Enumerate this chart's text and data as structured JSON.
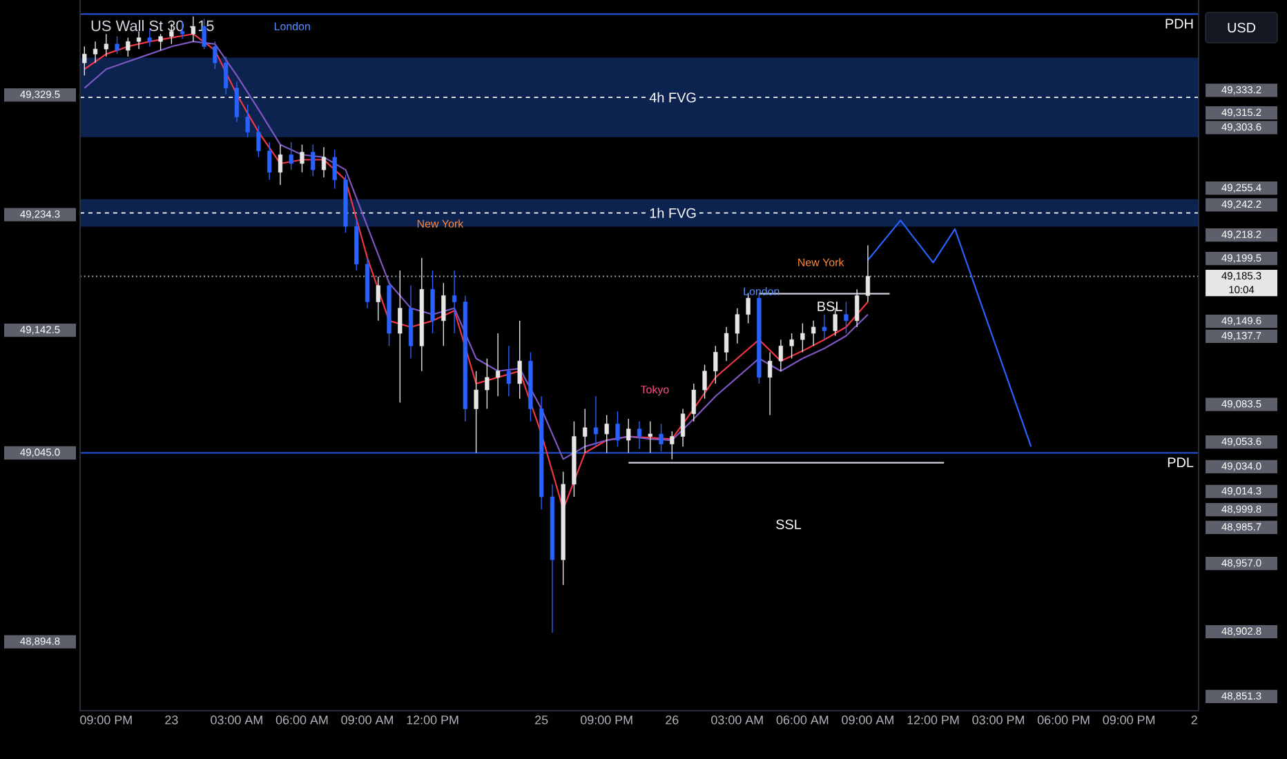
{
  "chart_data": {
    "type": "candlestick",
    "title": "US Wall St 30 · 15",
    "categories": [
      null,
      null,
      "09:00 PM",
      null,
      null,
      null,
      null,
      null,
      "23",
      null,
      null,
      null,
      null,
      null,
      "03:00 AM",
      null,
      null,
      null,
      null,
      null,
      "06:00 AM",
      null,
      null,
      null,
      null,
      null,
      "09:00 AM",
      null,
      null,
      null,
      null,
      null,
      "12:00 PM",
      null,
      null,
      null,
      null,
      null,
      null,
      null,
      null,
      null,
      "25",
      null,
      null,
      null,
      null,
      null,
      "09:00 PM",
      null,
      null,
      null,
      null,
      null,
      "26",
      null,
      null,
      null,
      null,
      null,
      "03:00 AM",
      null,
      null,
      null,
      null,
      null,
      "06:00 AM",
      null,
      null,
      null,
      null,
      null,
      "09:00 AM",
      null,
      null,
      null,
      null,
      null,
      "12:00 PM",
      null,
      null,
      null,
      null,
      null,
      "03:00 PM",
      null,
      null,
      null,
      null,
      null,
      "06:00 PM",
      null,
      null,
      null,
      null,
      null,
      "09:00 PM",
      null,
      null,
      null,
      null,
      null,
      "2"
    ],
    "ohlc": [
      [
        49355,
        49368,
        49345,
        49362
      ],
      [
        49362,
        49372,
        49355,
        49366
      ],
      [
        49366,
        49378,
        49360,
        49370
      ],
      [
        49370,
        49376,
        49362,
        49365
      ],
      [
        49365,
        49375,
        49360,
        49372
      ],
      [
        49372,
        49380,
        49366,
        49375
      ],
      [
        49375,
        49382,
        49368,
        49372
      ],
      [
        49372,
        49378,
        49365,
        49376
      ],
      [
        49376,
        49386,
        49370,
        49380
      ],
      [
        49380,
        49388,
        49374,
        49378
      ],
      [
        49378,
        49392,
        49372,
        49384
      ],
      [
        49384,
        49390,
        49366,
        49368
      ],
      [
        49368,
        49372,
        49350,
        49355
      ],
      [
        49355,
        49360,
        49330,
        49335
      ],
      [
        49335,
        49340,
        49308,
        49312
      ],
      [
        49312,
        49322,
        49296,
        49300
      ],
      [
        49300,
        49305,
        49280,
        49285
      ],
      [
        49285,
        49292,
        49262,
        49268
      ],
      [
        49268,
        49290,
        49258,
        49282
      ],
      [
        49282,
        49292,
        49270,
        49275
      ],
      [
        49275,
        49290,
        49268,
        49284
      ],
      [
        49284,
        49290,
        49265,
        49270
      ],
      [
        49270,
        49288,
        49264,
        49280
      ],
      [
        49280,
        49286,
        49255,
        49262
      ],
      [
        49262,
        49266,
        49220,
        49225
      ],
      [
        49225,
        49230,
        49190,
        49195
      ],
      [
        49195,
        49200,
        49160,
        49165
      ],
      [
        49165,
        49185,
        49150,
        49178
      ],
      [
        49178,
        49182,
        49130,
        49140
      ],
      [
        49140,
        49190,
        49085,
        49160
      ],
      [
        49160,
        49178,
        49120,
        49130
      ],
      [
        49130,
        49200,
        49110,
        49175
      ],
      [
        49175,
        49190,
        49140,
        49150
      ],
      [
        49150,
        49180,
        49130,
        49170
      ],
      [
        49170,
        49190,
        49140,
        49165
      ],
      [
        49165,
        49170,
        49070,
        49080
      ],
      [
        49080,
        49110,
        49045,
        49095
      ],
      [
        49095,
        49120,
        49080,
        49105
      ],
      [
        49105,
        49140,
        49090,
        49110
      ],
      [
        49110,
        49130,
        49090,
        49100
      ],
      [
        49100,
        49150,
        49088,
        49118
      ],
      [
        49118,
        49125,
        49070,
        49080
      ],
      [
        49080,
        49090,
        49000,
        49010
      ],
      [
        49010,
        49020,
        48902,
        48960
      ],
      [
        48960,
        49030,
        48940,
        49020
      ],
      [
        49020,
        49070,
        49010,
        49058
      ],
      [
        49058,
        49080,
        49045,
        49065
      ],
      [
        49065,
        49090,
        49050,
        49060
      ],
      [
        49060,
        49075,
        49045,
        49068
      ],
      [
        49068,
        49078,
        49050,
        49055
      ],
      [
        49055,
        49072,
        49045,
        49064
      ],
      [
        49064,
        49070,
        49048,
        49058
      ],
      [
        49058,
        49070,
        49045,
        49060
      ],
      [
        49060,
        49068,
        49046,
        49052
      ],
      [
        49052,
        49062,
        49040,
        49058
      ],
      [
        49058,
        49080,
        49050,
        49076
      ],
      [
        49076,
        49100,
        49070,
        49095
      ],
      [
        49095,
        49115,
        49088,
        49110
      ],
      [
        49110,
        49130,
        49100,
        49125
      ],
      [
        49125,
        49145,
        49118,
        49140
      ],
      [
        49140,
        49160,
        49132,
        49155
      ],
      [
        49155,
        49172,
        49148,
        49168
      ],
      [
        49168,
        49172,
        49100,
        49105
      ],
      [
        49105,
        49125,
        49075,
        49118
      ],
      [
        49118,
        49135,
        49110,
        49130
      ],
      [
        49130,
        49140,
        49120,
        49135
      ],
      [
        49135,
        49148,
        49125,
        49140
      ],
      [
        49140,
        49150,
        49130,
        49145
      ],
      [
        49145,
        49155,
        49135,
        49142
      ],
      [
        49142,
        49160,
        49138,
        49155
      ],
      [
        49155,
        49165,
        49140,
        49150
      ],
      [
        49150,
        49175,
        49145,
        49170
      ],
      [
        49170,
        49210,
        49165,
        49185.3
      ],
      null,
      null,
      null,
      null,
      null,
      null,
      null,
      null,
      null,
      null,
      null,
      null,
      null,
      null,
      null,
      null,
      null,
      null,
      null,
      null,
      null,
      null,
      null,
      null,
      null,
      null,
      null,
      null,
      null,
      null
    ],
    "series": [
      {
        "type": "line",
        "color": "#f23645",
        "values": [
          49350,
          null,
          49362,
          null,
          49368,
          null,
          49372,
          null,
          49375,
          null,
          49378,
          null,
          49365,
          null,
          49330,
          null,
          49300,
          null,
          49275,
          null,
          49278,
          null,
          49278,
          null,
          49262,
          null,
          49200,
          null,
          49150,
          null,
          49145,
          null,
          49150,
          null,
          49158,
          null,
          49100,
          null,
          49105,
          null,
          49110,
          null,
          49060,
          null,
          49000,
          null,
          49045,
          null,
          49055,
          null,
          49058,
          null,
          49057,
          null,
          49056,
          null,
          49080,
          null,
          49105,
          null,
          49120,
          null,
          49135,
          null,
          49118,
          null,
          49126,
          null,
          49135,
          null,
          49145,
          null,
          49165,
          null,
          null,
          null,
          null,
          null,
          null,
          null,
          null,
          null,
          null,
          null,
          null,
          null,
          null,
          null,
          null,
          null,
          null,
          null,
          null,
          null,
          null,
          null,
          null,
          null,
          null,
          null,
          null,
          null,
          null
        ]
      },
      {
        "type": "line",
        "color": "#7e57c2",
        "values": [
          49335,
          null,
          49350,
          null,
          49356,
          null,
          49362,
          null,
          49368,
          null,
          49372,
          null,
          49370,
          null,
          49345,
          null,
          49318,
          null,
          49290,
          null,
          49282,
          null,
          49280,
          null,
          49270,
          null,
          49225,
          null,
          49180,
          null,
          49160,
          null,
          49155,
          null,
          49160,
          null,
          49120,
          null,
          49110,
          null,
          49112,
          null,
          49080,
          null,
          49040,
          null,
          49050,
          null,
          49055,
          null,
          49058,
          null,
          49056,
          null,
          49055,
          null,
          49072,
          null,
          49090,
          null,
          49105,
          null,
          49120,
          null,
          49110,
          null,
          49120,
          null,
          49128,
          null,
          49138,
          null,
          49155,
          null,
          null,
          null,
          null,
          null,
          null,
          null,
          null,
          null,
          null,
          null,
          null,
          null,
          null,
          null,
          null,
          null,
          null,
          null,
          null,
          null,
          null,
          null,
          null,
          null,
          null,
          null,
          null,
          null,
          null
        ]
      },
      {
        "type": "line",
        "color": "#d1d4dc",
        "values": [
          null,
          null,
          null,
          null,
          null,
          null,
          null,
          null,
          null,
          null,
          null,
          null,
          null,
          null,
          null,
          null,
          null,
          null,
          null,
          null,
          null,
          null,
          null,
          null,
          null,
          null,
          null,
          null,
          null,
          null,
          null,
          null,
          null,
          null,
          null,
          null,
          null,
          null,
          null,
          null,
          null,
          null,
          null,
          null,
          null,
          null,
          null,
          null,
          null,
          null,
          null,
          null,
          null,
          null,
          null,
          null,
          null,
          null,
          null,
          null,
          null,
          null,
          49171.5,
          null,
          null,
          null,
          null,
          null,
          null,
          null,
          null,
          null,
          null,
          null,
          49171.5,
          null,
          null,
          null,
          null,
          null,
          null,
          null,
          null,
          null,
          null,
          null,
          null,
          null,
          null,
          null,
          null,
          null,
          null,
          null,
          null,
          null,
          null,
          null,
          null,
          null,
          null,
          null,
          null
        ]
      },
      {
        "type": "line",
        "color": "#d1d4dc",
        "values": [
          null,
          null,
          null,
          null,
          null,
          null,
          null,
          null,
          null,
          null,
          null,
          null,
          null,
          null,
          null,
          null,
          null,
          null,
          null,
          null,
          null,
          null,
          null,
          null,
          null,
          null,
          null,
          null,
          null,
          null,
          null,
          null,
          null,
          null,
          null,
          null,
          null,
          null,
          null,
          null,
          null,
          null,
          null,
          null,
          null,
          null,
          null,
          null,
          null,
          null,
          49037.1,
          null,
          null,
          null,
          null,
          null,
          null,
          null,
          null,
          null,
          null,
          null,
          null,
          null,
          null,
          null,
          null,
          null,
          null,
          null,
          null,
          null,
          null,
          null,
          null,
          null,
          null,
          null,
          null,
          49037.1,
          null,
          null,
          null,
          null,
          null,
          null,
          null,
          null,
          null,
          null,
          null,
          null,
          null,
          null,
          null,
          null,
          null,
          null,
          null,
          null,
          null,
          null,
          null
        ]
      },
      {
        "type": "line",
        "color": "#2962ff",
        "values": [
          null,
          null,
          null,
          null,
          null,
          null,
          null,
          null,
          null,
          null,
          null,
          null,
          null,
          null,
          null,
          null,
          null,
          null,
          null,
          null,
          null,
          null,
          null,
          null,
          null,
          null,
          null,
          null,
          null,
          null,
          null,
          null,
          null,
          null,
          null,
          null,
          null,
          null,
          null,
          null,
          null,
          null,
          null,
          null,
          null,
          null,
          null,
          null,
          null,
          null,
          null,
          null,
          null,
          null,
          null,
          null,
          null,
          null,
          null,
          null,
          null,
          null,
          null,
          null,
          null,
          null,
          null,
          null,
          null,
          null,
          null,
          null,
          49198.2,
          null,
          null,
          49229.8,
          null,
          null,
          49196.2,
          null,
          49222.9,
          null,
          null,
          null,
          null,
          null,
          null,
          49049.9,
          null,
          null,
          null,
          null,
          null,
          null,
          null,
          null,
          null,
          null,
          null,
          null,
          null,
          null,
          null
        ]
      }
    ],
    "ylim": [
      48840,
      49405
    ],
    "yticks": [
      {
        "value": 49329.5,
        "label": "49,329.5"
      },
      {
        "value": 49234.3,
        "label": "49,234.3"
      },
      {
        "value": 49142.5,
        "label": "49,142.5"
      },
      {
        "value": 49045.0,
        "label": "49,045.0"
      },
      {
        "value": 48894.8,
        "label": "48,894.8"
      }
    ],
    "y2lim": [
      48840,
      49405
    ],
    "y2ticks": [
      {
        "value": 49333.2,
        "label": "49,333.2"
      },
      {
        "value": 49315.2,
        "label": "49,315.2"
      },
      {
        "value": 49303.6,
        "label": "49,303.6"
      },
      {
        "value": 49255.4,
        "label": "49,255.4"
      },
      {
        "value": 49242.2,
        "label": "49,242.2"
      },
      {
        "value": 49218.2,
        "label": "49,218.2"
      },
      {
        "value": 49199.5,
        "label": "49,199.5"
      },
      {
        "value": 49185.3,
        "label": "49,185.3"
      },
      {
        "value": 49149.6,
        "label": "49,149.6"
      },
      {
        "value": 49137.7,
        "label": "49,137.7"
      },
      {
        "value": 49083.5,
        "label": "49,083.5"
      },
      {
        "value": 49053.6,
        "label": "49,053.6"
      },
      {
        "value": 49034.0,
        "label": "49,034.0"
      },
      {
        "value": 49014.3,
        "label": "49,014.3"
      },
      {
        "value": 48999.8,
        "label": "48,999.8"
      },
      {
        "value": 48985.7,
        "label": "48,985.7"
      },
      {
        "value": 48957.0,
        "label": "48,957.0"
      },
      {
        "value": 48902.8,
        "label": "48,902.8"
      },
      {
        "value": 48851.3,
        "label": "48,851.3"
      }
    ],
    "ref_lines": [
      {
        "axis": "y",
        "value": 49393.8,
        "label": "PDH",
        "color": "#2962ff"
      },
      {
        "axis": "y",
        "value": 49045.0,
        "label": "PDL",
        "color": "#2962ff"
      },
      {
        "axis": "y",
        "value": 49185.3,
        "color": "#b2b5be",
        "line_style": "dotted"
      },
      {
        "axis": "y",
        "value": 49327.6,
        "label": "4h FVG",
        "color": "#ffffff",
        "line_style": "dashed"
      },
      {
        "axis": "y",
        "value": 49235.7,
        "label": "1h FVG",
        "color": "#ffffff",
        "line_style": "dashed"
      }
    ],
    "bands": [
      {
        "axis": "y",
        "from": 49296.0,
        "to": 49359.2,
        "color": "#0c2350"
      },
      {
        "axis": "y",
        "from": 49224.8,
        "to": 49246.6,
        "color": "#0c2350"
      }
    ],
    "annotations": [
      "USD",
      "London",
      "New York",
      "Tokyo",
      "New York",
      "London",
      "BSL",
      "SSL",
      "10:04"
    ]
  }
}
